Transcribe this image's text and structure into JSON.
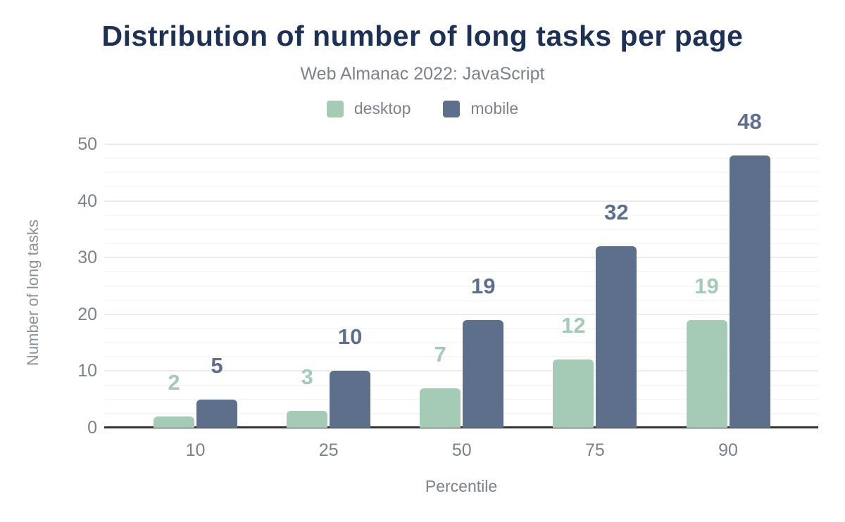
{
  "chart_data": {
    "type": "bar",
    "title": "Distribution of number of long tasks per page",
    "subtitle": "Web Almanac 2022: JavaScript",
    "xlabel": "Percentile",
    "ylabel": "Number of long tasks",
    "categories": [
      "10",
      "25",
      "50",
      "75",
      "90"
    ],
    "series": [
      {
        "name": "desktop",
        "color": "#a5cab6",
        "values": [
          2,
          3,
          7,
          12,
          19
        ]
      },
      {
        "name": "mobile",
        "color": "#5e6f8c",
        "values": [
          5,
          10,
          19,
          32,
          48
        ]
      }
    ],
    "ylim": [
      0,
      50
    ],
    "yticks": [
      0,
      10,
      20,
      30,
      40,
      50
    ],
    "grid": {
      "major_every": 10,
      "minor_every": 2.5,
      "on": true
    },
    "legend_position": "top",
    "data_labels": true
  },
  "colors": {
    "title": "#1e3054",
    "muted_text": "#7c828b",
    "axis_line": "#333333",
    "grid_major": "#ececec",
    "grid_minor": "#f7f7f7",
    "background": "#ffffff"
  }
}
